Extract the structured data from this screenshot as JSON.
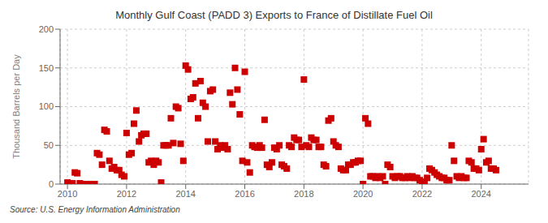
{
  "chart_data": {
    "type": "scatter",
    "title": "Monthly Gulf Coast (PADD 3) Exports to France of Distillate Fuel Oil",
    "ylabel": "Thousand Barrels per Day",
    "annotations": [
      "Source: U.S. Energy Information Administration"
    ],
    "color": "#cc0000",
    "marker": "square",
    "grid": true,
    "xlim": [
      2009.75,
      2025.6
    ],
    "xticks": [
      2010,
      2012,
      2014,
      2016,
      2018,
      2020,
      2022,
      2024
    ],
    "ylim": [
      0,
      200
    ],
    "yticks": [
      0,
      50,
      100,
      150,
      200
    ],
    "x": [
      2010.0,
      2010.08,
      2010.17,
      2010.25,
      2010.33,
      2010.42,
      2010.5,
      2010.58,
      2010.67,
      2010.75,
      2010.83,
      2010.92,
      2011.0,
      2011.08,
      2011.17,
      2011.25,
      2011.33,
      2011.42,
      2011.5,
      2011.58,
      2011.67,
      2011.75,
      2011.83,
      2011.92,
      2012.0,
      2012.08,
      2012.17,
      2012.25,
      2012.33,
      2012.42,
      2012.5,
      2012.58,
      2012.67,
      2012.75,
      2012.83,
      2012.92,
      2013.0,
      2013.08,
      2013.17,
      2013.25,
      2013.33,
      2013.42,
      2013.5,
      2013.58,
      2013.67,
      2013.75,
      2013.83,
      2013.92,
      2014.0,
      2014.08,
      2014.17,
      2014.25,
      2014.33,
      2014.42,
      2014.5,
      2014.58,
      2014.67,
      2014.75,
      2014.83,
      2014.92,
      2015.0,
      2015.08,
      2015.17,
      2015.25,
      2015.33,
      2015.42,
      2015.5,
      2015.58,
      2015.67,
      2015.75,
      2015.83,
      2015.92,
      2016.0,
      2016.08,
      2016.17,
      2016.25,
      2016.33,
      2016.42,
      2016.5,
      2016.58,
      2016.67,
      2016.75,
      2016.83,
      2016.92,
      2017.0,
      2017.08,
      2017.17,
      2017.25,
      2017.33,
      2017.42,
      2017.5,
      2017.58,
      2017.67,
      2017.75,
      2017.83,
      2017.92,
      2018.0,
      2018.08,
      2018.17,
      2018.25,
      2018.33,
      2018.42,
      2018.5,
      2018.58,
      2018.67,
      2018.75,
      2018.83,
      2018.92,
      2019.0,
      2019.08,
      2019.17,
      2019.25,
      2019.33,
      2019.42,
      2019.5,
      2019.58,
      2019.67,
      2019.75,
      2019.83,
      2019.92,
      2020.0,
      2020.08,
      2020.17,
      2020.25,
      2020.33,
      2020.42,
      2020.5,
      2020.58,
      2020.67,
      2020.75,
      2020.83,
      2020.92,
      2021.0,
      2021.08,
      2021.17,
      2021.25,
      2021.33,
      2021.42,
      2021.5,
      2021.58,
      2021.67,
      2021.75,
      2021.83,
      2021.92,
      2022.0,
      2022.08,
      2022.17,
      2022.25,
      2022.33,
      2022.42,
      2022.5,
      2022.58,
      2022.67,
      2022.75,
      2022.83,
      2022.92,
      2023.0,
      2023.08,
      2023.17,
      2023.25,
      2023.33,
      2023.42,
      2023.5,
      2023.58,
      2023.67,
      2023.75,
      2023.83,
      2023.92,
      2024.0,
      2024.08,
      2024.17,
      2024.25,
      2024.33,
      2024.42,
      2024.5
    ],
    "values": [
      2,
      0,
      1,
      15,
      14,
      1,
      0,
      0,
      0,
      0,
      0,
      0,
      40,
      38,
      25,
      70,
      68,
      30,
      20,
      22,
      18,
      18,
      12,
      10,
      66,
      38,
      40,
      78,
      95,
      55,
      63,
      65,
      65,
      28,
      30,
      25,
      30,
      28,
      2,
      50,
      50,
      50,
      85,
      53,
      100,
      98,
      52,
      30,
      153,
      148,
      110,
      112,
      130,
      85,
      133,
      105,
      100,
      55,
      120,
      122,
      55,
      45,
      50,
      47,
      50,
      45,
      118,
      103,
      150,
      122,
      90,
      30,
      145,
      28,
      15,
      50,
      48,
      47,
      50,
      47,
      83,
      25,
      22,
      28,
      47,
      45,
      50,
      25,
      23,
      20,
      50,
      48,
      60,
      57,
      57,
      48,
      135,
      50,
      48,
      60,
      57,
      57,
      48,
      48,
      25,
      23,
      82,
      85,
      55,
      50,
      48,
      20,
      18,
      18,
      25,
      25,
      28,
      28,
      30,
      30,
      0,
      85,
      78,
      10,
      10,
      8,
      10,
      8,
      10,
      0,
      25,
      22,
      10,
      8,
      10,
      10,
      8,
      8,
      10,
      8,
      10,
      8,
      8,
      5,
      3,
      0,
      8,
      20,
      18,
      15,
      12,
      10,
      8,
      8,
      5,
      5,
      50,
      30,
      10,
      8,
      10,
      8,
      8,
      30,
      28,
      20,
      20,
      18,
      45,
      58,
      28,
      30,
      20,
      20,
      18
    ]
  }
}
